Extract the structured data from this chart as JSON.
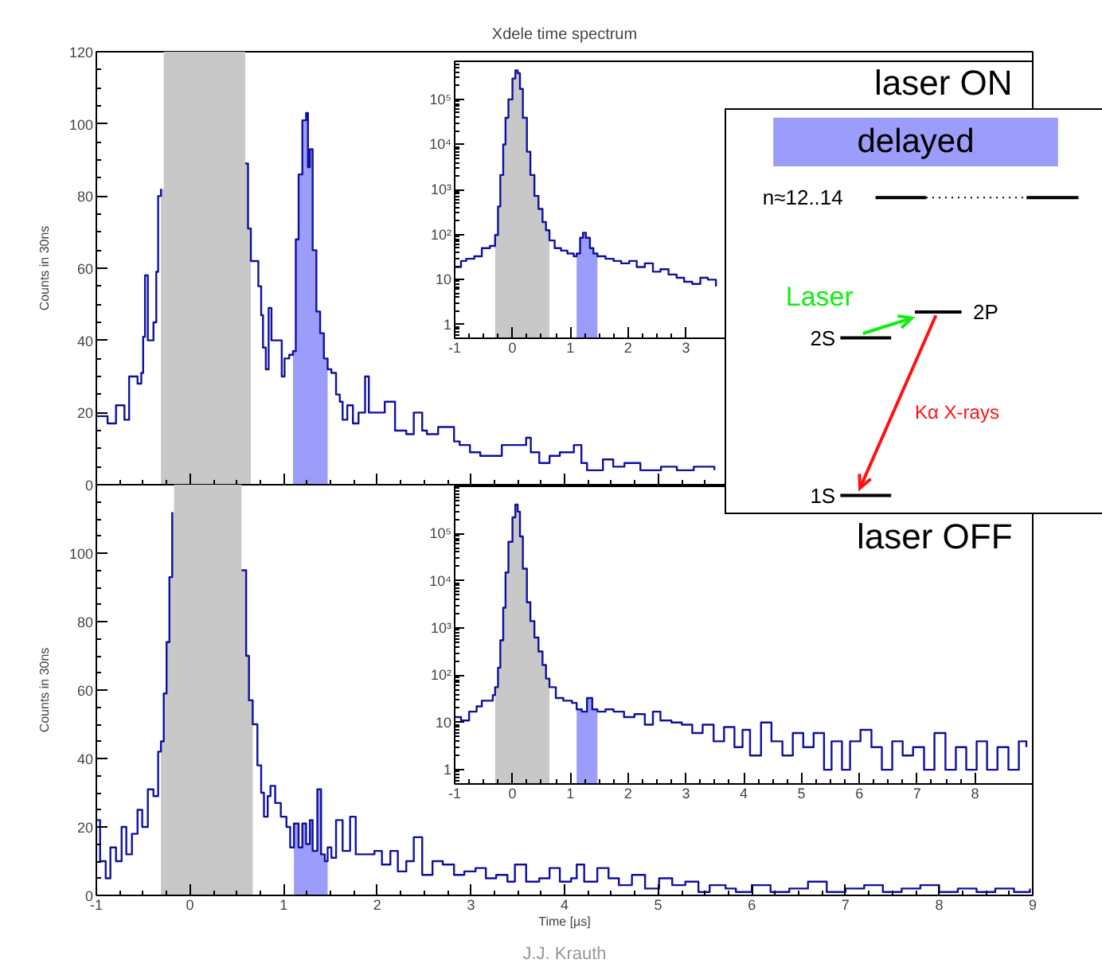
{
  "chart_data": [
    {
      "type": "step",
      "title": "Xdele time spectrum",
      "ylabel": "Counts in 30ns",
      "xlim": [
        -1,
        9
      ],
      "ylim": [
        0,
        120
      ],
      "xticks": [
        -1,
        0,
        1,
        2,
        3,
        4,
        5,
        6,
        7,
        8,
        9
      ],
      "yticks": [
        0,
        20,
        40,
        60,
        80,
        100,
        120
      ],
      "tick_labels": "y",
      "legend": "top right",
      "annotations": [
        "n≈12..14",
        "Laser",
        "2S",
        "2P",
        "Kα X-rays",
        "1S"
      ],
      "bands": [
        {
          "axis": "x",
          "from": -0.28,
          "to": 0.59,
          "color": "#c8c8c8"
        }
      ],
      "series": [
        {
          "type": "area",
          "color": "#c8c8c8",
          "x": [
            -0.31,
            -0.28,
            0.59,
            0.62,
            0.65
          ],
          "values": [
            82,
            null,
            89,
            71,
            62
          ]
        },
        {
          "type": "area",
          "name": "delayed",
          "color": "#9c9cfa",
          "x": [
            1.1,
            1.13,
            1.16,
            1.2,
            1.24,
            1.26,
            1.28,
            1.31,
            1.35,
            1.39,
            1.43,
            1.47
          ],
          "values": [
            37,
            68,
            86,
            101,
            103,
            88,
            93,
            65,
            48,
            42,
            35,
            32
          ]
        },
        {
          "color": "#1010a0",
          "x": [
            -1.0,
            -0.88,
            -0.79,
            -0.7,
            -0.65,
            -0.56,
            -0.52,
            -0.5,
            -0.48,
            -0.45,
            -0.39,
            -0.36,
            -0.34,
            -0.31,
            -0.28,
            0.59,
            0.62,
            0.65,
            0.73,
            0.76,
            0.78,
            0.81,
            0.84,
            0.87,
            0.9,
            0.98,
            1.01,
            1.06,
            1.1,
            1.13,
            1.16,
            1.2,
            1.24,
            1.26,
            1.28,
            1.31,
            1.35,
            1.39,
            1.43,
            1.47,
            1.51,
            1.56,
            1.6,
            1.63,
            1.68,
            1.74,
            1.8,
            1.87,
            1.91,
            1.97,
            2.08,
            2.19,
            2.31,
            2.39,
            2.48,
            2.53,
            2.65,
            2.76,
            2.82,
            2.88,
            2.99,
            3.1,
            3.22,
            3.33,
            3.44,
            3.59,
            3.64,
            3.73,
            3.84,
            3.95,
            4.1,
            4.18,
            4.24,
            4.41,
            4.52,
            4.64,
            4.81,
            5.03,
            5.2,
            5.38,
            5.6
          ],
          "values": [
            19,
            17,
            22,
            18,
            30,
            28,
            31,
            41,
            58,
            40,
            45,
            59,
            80,
            82,
            null,
            89,
            71,
            62,
            55,
            47,
            38,
            32,
            49,
            40,
            40,
            30,
            35,
            36,
            37,
            68,
            86,
            101,
            103,
            88,
            93,
            65,
            48,
            42,
            35,
            32,
            31,
            25,
            23,
            18,
            22,
            17,
            20,
            30,
            20,
            20,
            23,
            15,
            14,
            20,
            15,
            14,
            16,
            16,
            12,
            11,
            9,
            8,
            8,
            11,
            11,
            13,
            9,
            6,
            8,
            9,
            11,
            6,
            4,
            7,
            5,
            6,
            4,
            5,
            4,
            5,
            4
          ]
        }
      ]
    },
    {
      "type": "step",
      "log": true,
      "xlim": [
        -1,
        9
      ],
      "ylim": [
        0.5,
        700000
      ],
      "xticks": [
        -1,
        0,
        1,
        2,
        3
      ],
      "yticks": [
        1,
        10,
        {
          "value": 100,
          "label": "10²"
        },
        {
          "value": 1000,
          "label": "10³"
        },
        {
          "value": 10000,
          "label": "10⁴"
        },
        {
          "value": 100000,
          "label": "10⁵"
        }
      ],
      "annotations": [
        "laser ON"
      ],
      "series": [
        {
          "type": "area",
          "color": "#c8c8c8",
          "x": [
            -0.3,
            -0.25,
            -0.21,
            -0.16,
            -0.12,
            -0.07,
            0.0,
            0.05,
            0.09,
            0.13,
            0.18,
            0.25,
            0.31,
            0.38,
            0.45,
            0.52,
            0.58,
            0.64
          ],
          "values": [
            98,
            420,
            2100,
            10000,
            39000,
            100000,
            290000,
            440000,
            380000,
            170000,
            39000,
            6900,
            2100,
            720,
            370,
            190,
            125,
            74
          ]
        },
        {
          "type": "area",
          "color": "#9c9cfa",
          "x": [
            1.11,
            1.17,
            1.22,
            1.27,
            1.34,
            1.4,
            1.47
          ],
          "values": [
            38,
            85,
            110,
            85,
            50,
            38,
            33
          ]
        },
        {
          "color": "#1010a0",
          "x": [
            -1.0,
            -0.89,
            -0.8,
            -0.66,
            -0.53,
            -0.39,
            -0.3,
            -0.25,
            -0.21,
            -0.16,
            -0.12,
            -0.07,
            0.0,
            0.05,
            0.09,
            0.13,
            0.18,
            0.25,
            0.31,
            0.38,
            0.45,
            0.52,
            0.58,
            0.64,
            0.73,
            0.84,
            0.95,
            1.06,
            1.11,
            1.17,
            1.22,
            1.27,
            1.34,
            1.4,
            1.47,
            1.61,
            1.75,
            1.88,
            2.02,
            2.15,
            2.29,
            2.43,
            2.56,
            2.7,
            2.84,
            2.97,
            3.11,
            3.25,
            3.38,
            3.52
          ],
          "values": [
            19,
            26,
            29,
            33,
            50,
            56,
            98,
            420,
            2100,
            10000,
            39000,
            100000,
            290000,
            440000,
            380000,
            170000,
            39000,
            6900,
            2100,
            720,
            370,
            190,
            125,
            74,
            50,
            44,
            38,
            33,
            38,
            85,
            110,
            85,
            50,
            38,
            33,
            29,
            26,
            23,
            26,
            19,
            23,
            15,
            17,
            13,
            11,
            9,
            8,
            11,
            10,
            7
          ]
        }
      ]
    },
    {
      "type": "step",
      "xlabel": "Time [µs]",
      "ylabel": "Counts in 30ns",
      "xlim": [
        -1,
        9
      ],
      "ylim": [
        0,
        120
      ],
      "xticks": [
        -1,
        0,
        1,
        2,
        3,
        4,
        5,
        6,
        7,
        8,
        9
      ],
      "yticks": [
        0,
        20,
        40,
        60,
        80,
        100,
        {
          "value": 120,
          "label": null
        }
      ],
      "annotations": [
        "J.J. Krauth"
      ],
      "bands": [
        {
          "axis": "x",
          "from": -0.17,
          "to": 0.55,
          "color": "#c8c8c8"
        }
      ],
      "series": [
        {
          "type": "area",
          "color": "#c8c8c8",
          "x": [
            -0.31,
            -0.28,
            -0.25,
            -0.22,
            -0.19,
            -0.17,
            0.55,
            0.6,
            0.63,
            0.67
          ],
          "values": [
            45,
            59,
            74,
            93,
            112,
            null,
            95,
            70,
            57,
            50
          ]
        },
        {
          "type": "area",
          "color": "#9c9cfa",
          "x": [
            1.11,
            1.16,
            1.2,
            1.24,
            1.28,
            1.31,
            1.36,
            1.4,
            1.44,
            1.47
          ],
          "values": [
            21,
            14,
            21,
            15,
            22,
            13,
            31,
            12,
            10,
            14
          ]
        },
        {
          "color": "#1010a0",
          "x": [
            -1.0,
            -0.96,
            -0.9,
            -0.85,
            -0.79,
            -0.73,
            -0.68,
            -0.62,
            -0.56,
            -0.51,
            -0.45,
            -0.39,
            -0.34,
            -0.31,
            -0.28,
            -0.25,
            -0.22,
            -0.19,
            -0.17,
            0.55,
            0.6,
            0.63,
            0.67,
            0.72,
            0.76,
            0.79,
            0.83,
            0.86,
            0.91,
            0.97,
            1.03,
            1.07,
            1.11,
            1.16,
            1.2,
            1.24,
            1.28,
            1.31,
            1.36,
            1.4,
            1.44,
            1.47,
            1.51,
            1.56,
            1.63,
            1.71,
            1.77,
            1.85,
            1.97,
            2.05,
            2.14,
            2.22,
            2.31,
            2.39,
            2.48,
            2.59,
            2.7,
            2.82,
            2.93,
            3.05,
            3.16,
            3.27,
            3.39,
            3.47,
            3.59,
            3.73,
            3.84,
            3.95,
            4.07,
            4.13,
            4.21,
            4.35,
            4.47,
            4.58,
            4.72,
            4.86,
            5.01,
            5.15,
            5.29,
            5.43,
            5.55,
            5.72,
            5.83,
            6.0,
            6.2,
            6.4,
            6.6,
            6.8,
            7.0,
            7.2,
            7.4,
            7.6,
            7.8,
            8.0,
            8.2,
            8.4,
            8.6,
            8.8,
            8.97
          ],
          "values": [
            22,
            10,
            5,
            14,
            10,
            20,
            12,
            18,
            25,
            20,
            31,
            29,
            42,
            45,
            59,
            74,
            93,
            112,
            null,
            95,
            70,
            57,
            50,
            38,
            30,
            23,
            29,
            32,
            27,
            23,
            20,
            14,
            21,
            14,
            21,
            15,
            22,
            13,
            31,
            12,
            10,
            14,
            11,
            22,
            13,
            23,
            12,
            12,
            13,
            9,
            13,
            7,
            10,
            17,
            6,
            10,
            9,
            6,
            7,
            8,
            5,
            6,
            4,
            9,
            4,
            5,
            8,
            4,
            5,
            9,
            4,
            8,
            5,
            3,
            6,
            2,
            5,
            3,
            4,
            1,
            3,
            2,
            1,
            3,
            1,
            2,
            4,
            1,
            2,
            3,
            1,
            2,
            3,
            1,
            2,
            1,
            2,
            1,
            2
          ]
        }
      ]
    },
    {
      "type": "step",
      "log": true,
      "xlim": [
        -1,
        9
      ],
      "ylim": [
        0.5,
        1000000
      ],
      "xticks": [
        -1,
        0,
        1,
        2,
        3,
        4,
        5,
        6,
        7,
        8
      ],
      "yticks": [
        1,
        10,
        {
          "value": 100,
          "label": "10²"
        },
        {
          "value": 1000,
          "label": "10³"
        },
        {
          "value": 10000,
          "label": "10⁴"
        },
        {
          "value": 100000,
          "label": "10⁵"
        }
      ],
      "annotations": [
        "laser OFF"
      ],
      "series": [
        {
          "type": "area",
          "color": "#c8c8c8",
          "x": [
            -0.3,
            -0.25,
            -0.21,
            -0.16,
            -0.12,
            -0.07,
            0.0,
            0.05,
            0.09,
            0.13,
            0.18,
            0.25,
            0.31,
            0.38,
            0.45,
            0.52,
            0.58,
            0.64
          ],
          "values": [
            56,
            145,
            550,
            2700,
            15000,
            67000,
            220000,
            410000,
            290000,
            87000,
            18000,
            3500,
            1400,
            630,
            320,
            165,
            85,
            56
          ]
        },
        {
          "type": "area",
          "color": "#9c9cfa",
          "x": [
            1.11,
            1.2,
            1.29,
            1.38,
            1.47
          ],
          "values": [
            19,
            17,
            33,
            19,
            17
          ]
        },
        {
          "color": "#1010a0",
          "x": [
            -1.0,
            -0.89,
            -0.75,
            -0.62,
            -0.53,
            -0.34,
            -0.3,
            -0.25,
            -0.21,
            -0.16,
            -0.12,
            -0.07,
            0.0,
            0.05,
            0.09,
            0.13,
            0.18,
            0.25,
            0.31,
            0.38,
            0.45,
            0.52,
            0.58,
            0.64,
            0.75,
            0.88,
            1.03,
            1.11,
            1.2,
            1.29,
            1.38,
            1.47,
            1.61,
            1.75,
            1.93,
            2.11,
            2.29,
            2.43,
            2.56,
            2.75,
            2.93,
            3.11,
            3.29,
            3.48,
            3.66,
            3.84,
            3.98,
            4.11,
            4.3,
            4.48,
            4.67,
            4.85,
            5.03,
            5.21,
            5.39,
            5.52,
            5.7,
            5.84,
            6.02,
            6.21,
            6.39,
            6.57,
            6.75,
            6.93,
            7.12,
            7.3,
            7.49,
            7.67,
            7.85,
            8.03,
            8.21,
            8.39,
            8.58,
            8.76,
            8.89
          ],
          "values": [
            13,
            11,
            17,
            22,
            29,
            38,
            56,
            145,
            550,
            2700,
            15000,
            67000,
            220000,
            410000,
            290000,
            87000,
            18000,
            3500,
            1400,
            630,
            320,
            165,
            85,
            56,
            33,
            29,
            26,
            19,
            17,
            33,
            19,
            17,
            19,
            17,
            13,
            15,
            9,
            17,
            11,
            10,
            9,
            6,
            9,
            4,
            8,
            3,
            7,
            2,
            10,
            4,
            2,
            6,
            3,
            6,
            1,
            4,
            1,
            4,
            7,
            3,
            1,
            4,
            2,
            3,
            1,
            6,
            1,
            3,
            1,
            4,
            1,
            3,
            1,
            4,
            3
          ]
        }
      ]
    }
  ]
}
